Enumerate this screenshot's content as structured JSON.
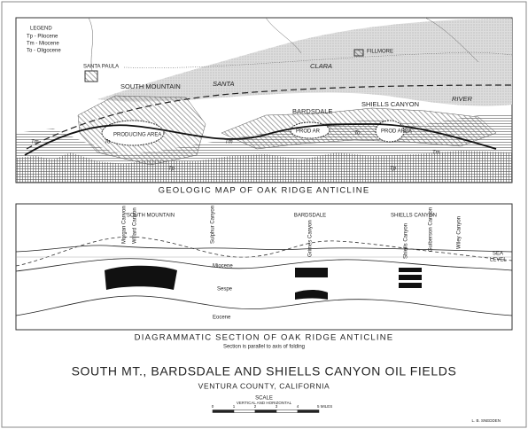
{
  "map": {
    "legend": {
      "title": "LEGEND",
      "items": [
        "Tp - Pliocene",
        "Tm - Miocene",
        "To - Oligocene"
      ]
    },
    "towns": [
      "SANTA PAULA",
      "FILLMORE"
    ],
    "features": [
      "SOUTH MOUNTAIN",
      "SANTA",
      "CLARA",
      "RIVER",
      "BARDSDALE",
      "SHIELLS CANYON"
    ],
    "producing_areas": [
      "PRODUCING AREA",
      "PROD AR",
      "PROD AREA"
    ],
    "formations": [
      "Tp",
      "To",
      "Tm"
    ],
    "caption": "GEOLOGIC MAP OF OAK RIDGE ANTICLINE"
  },
  "section": {
    "fields": [
      "SOUTH MOUNTAIN",
      "BARDSDALE",
      "SHIELLS CANYON"
    ],
    "canyons": [
      "Morgan Canyon",
      "Willard Canyon",
      "Sulphur Canyon",
      "Grimes Canyon",
      "Shiells Canyon",
      "Guiberson Canyon",
      "Wiley Canyon"
    ],
    "layers": [
      "Miocene",
      "Sespe",
      "Eocene"
    ],
    "sea_level": [
      "SEA",
      "LEVEL"
    ],
    "caption": "DIAGRAMMATIC SECTION OF OAK RIDGE ANTICLINE",
    "note": "Section is parallel to axis of folding"
  },
  "title": "SOUTH MT., BARDSDALE AND SHIELLS CANYON OIL FIELDS",
  "subtitle": "VENTURA COUNTY, CALIFORNIA",
  "scale": {
    "title": "SCALE",
    "subtitle": "VERTICAL AND HORIZONTAL",
    "ticks": [
      "0",
      "1",
      "2",
      "3",
      "4"
    ],
    "unit": "5 MILES"
  },
  "author": "L. B. SNEDDEN"
}
